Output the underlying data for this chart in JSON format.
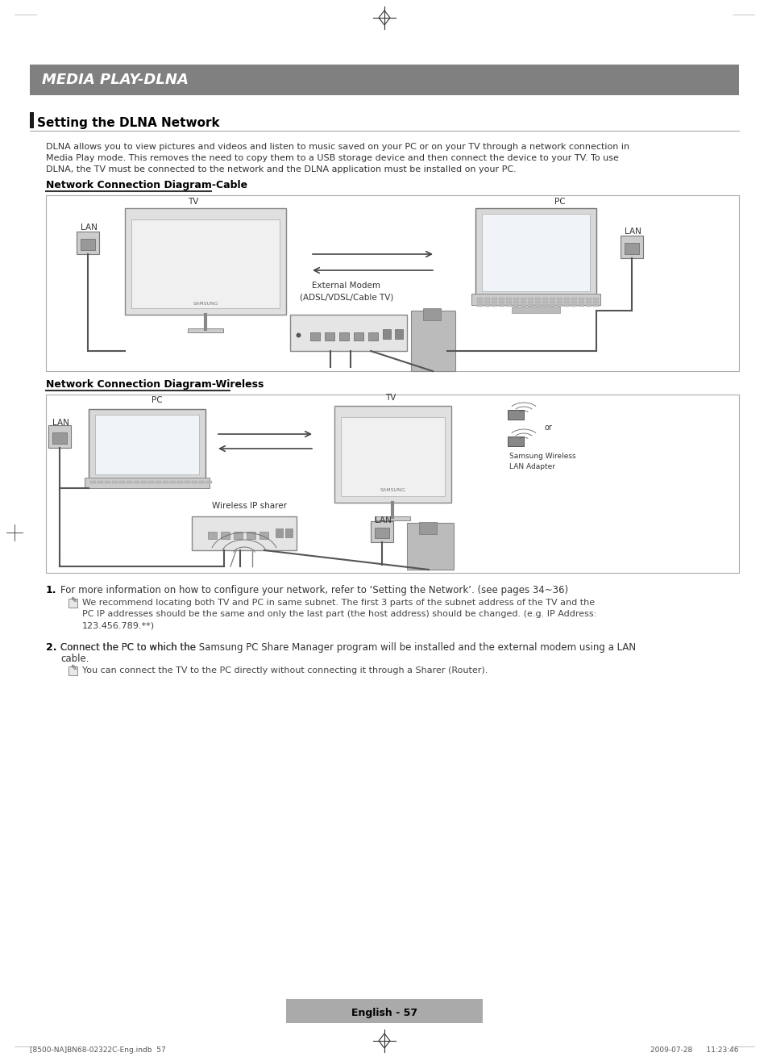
{
  "page_bg": "#ffffff",
  "header_bg": "#808080",
  "header_text": "MEDIA PLAY-DLNA",
  "header_text_color": "#ffffff",
  "section_bar_color": "#1a1a1a",
  "section_title": "Setting the DLNA Network",
  "body_text_line1": "DLNA allows you to view pictures and videos and listen to music saved on your PC or on your TV through a network connection in",
  "body_text_line2": "Media Play mode. This removes the need to copy them to a USB storage device and then connect the device to your TV. To use",
  "body_text_line3": "DLNA, the TV must be connected to the network and the DLNA application must be installed on your PC.",
  "diagram1_title": "Network Connection Diagram-Cable",
  "diagram2_title": "Network Connection Diagram-Wireless",
  "footer_text": "English - 57",
  "footer_bar_color": "#aaaaaa",
  "bottom_left": "[8500-NA]BN68-02322C-Eng.indb  57",
  "bottom_right": "2009-07-28      11:23:46",
  "point1_label": "1.",
  "point1_text": "For more information on how to configure your network, refer to ‘Setting the Network’. (see pages 34~36)",
  "point1_note": "We recommend locating both TV and PC in same subnet. The first 3 parts of the subnet address of the TV and the\nPC IP addresses should be the same and only the last part (the host address) should be changed. (e.g. IP Address:\n123.456.789.**)",
  "point2_label": "2.",
  "point2_text1": "Connect the PC to which the ",
  "point2_bold": "Samsung PC Share Manager",
  "point2_text2": " program will be installed and the external modem using a LAN",
  "point2_text3": "cable.",
  "point2_note": "You can connect the TV to the PC directly without connecting it through a Sharer (Router).",
  "diagram_border": "#aaaaaa",
  "diagram_bg": "#ffffff",
  "text_color": "#333333",
  "bg_color": "#f5f5f5"
}
